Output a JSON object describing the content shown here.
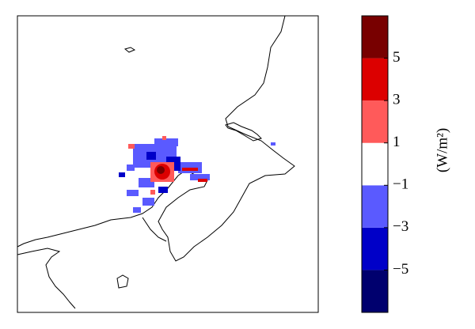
{
  "colorbar": {
    "label": "(W/m²)",
    "lim": [
      -7,
      7
    ],
    "ticks": [
      {
        "value": 5,
        "label": "5"
      },
      {
        "value": 3,
        "label": "3"
      },
      {
        "value": 1,
        "label": "1"
      },
      {
        "value": -1,
        "label": "−1"
      },
      {
        "value": -3,
        "label": "−3"
      },
      {
        "value": -5,
        "label": "−5"
      }
    ],
    "colors": [
      "#00006e",
      "#0000c8",
      "#5a5aff",
      "#ffffff",
      "#ff5a5a",
      "#dc0000",
      "#780000"
    ]
  }
}
